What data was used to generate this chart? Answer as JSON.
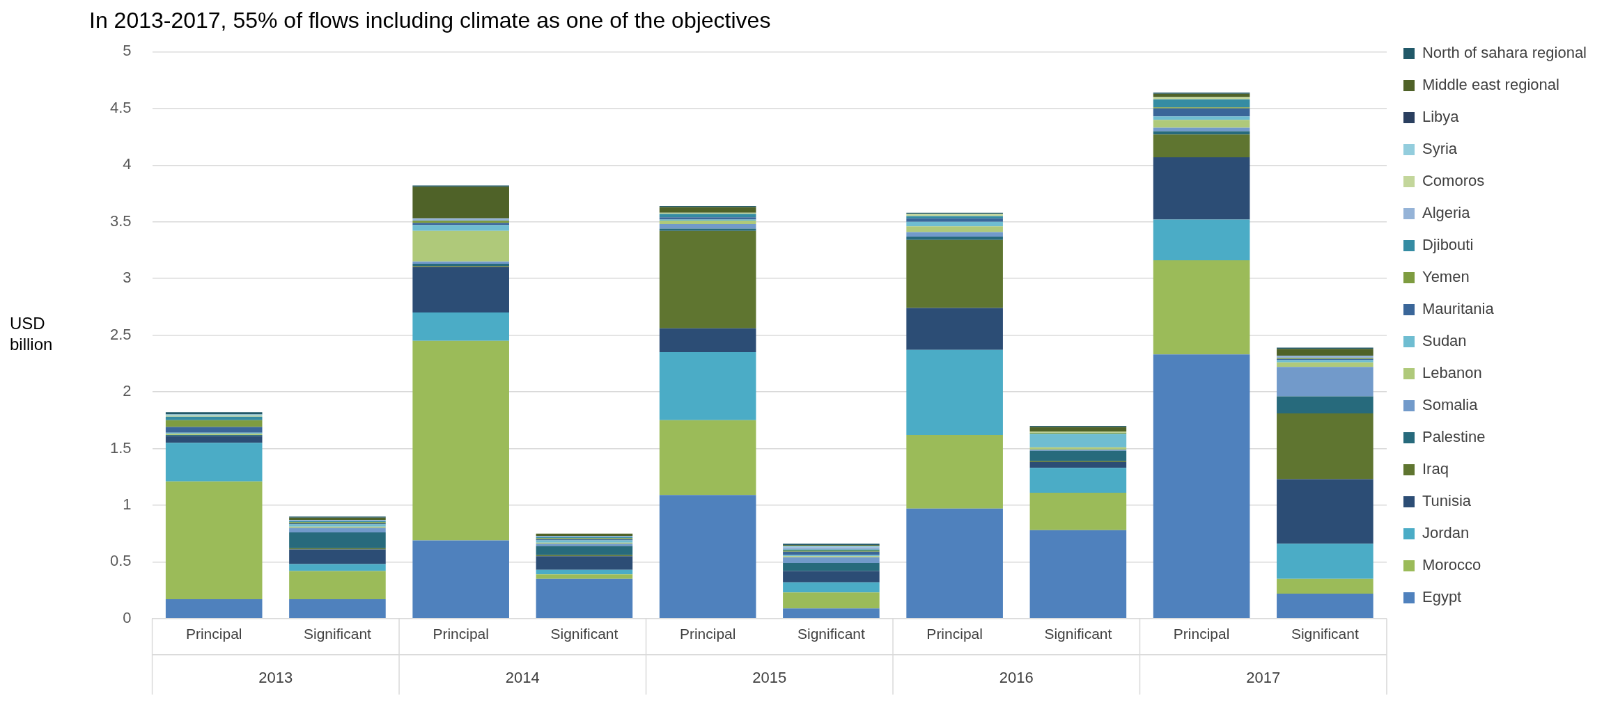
{
  "chart_data": {
    "type": "bar",
    "title": "In 2013-2017, 55% of flows including climate as one of the objectives",
    "ylabel": "USD billion",
    "stacked": true,
    "legend": "right",
    "grid": "y",
    "categories": [
      "Principal",
      "Significant",
      "Principal",
      "Significant",
      "Principal",
      "Significant",
      "Principal",
      "Significant",
      "Principal",
      "Significant"
    ],
    "annotations": [
      "2013",
      "2014",
      "2015",
      "2016",
      "2017"
    ],
    "ylim": [
      0,
      5
    ],
    "yticks": [
      0,
      0.5,
      1,
      1.5,
      2,
      2.5,
      3,
      3.5,
      4,
      4.5,
      5
    ],
    "series": [
      {
        "name": "Egypt",
        "color": "#4f81bd",
        "values": [
          0.17,
          0.17,
          0.69,
          0.35,
          1.09,
          0.09,
          0.97,
          0.78,
          2.33,
          0.22
        ]
      },
      {
        "name": "Morocco",
        "color": "#9bbb59",
        "values": [
          1.04,
          0.25,
          1.76,
          0.04,
          0.66,
          0.14,
          0.65,
          0.33,
          0.83,
          0.13
        ]
      },
      {
        "name": "Jordan",
        "color": "#4bacc6",
        "values": [
          0.34,
          0.06,
          0.25,
          0.04,
          0.6,
          0.09,
          0.75,
          0.22,
          0.36,
          0.31
        ]
      },
      {
        "name": "Tunisia",
        "color": "#2c4d75",
        "values": [
          0.06,
          0.13,
          0.4,
          0.12,
          0.21,
          0.1,
          0.37,
          0.05,
          0.55,
          0.57
        ]
      },
      {
        "name": "Iraq",
        "color": "#5f7530",
        "values": [
          0,
          0.01,
          0.01,
          0.01,
          0.86,
          0,
          0.6,
          0.01,
          0.2,
          0.58
        ]
      },
      {
        "name": "Palestine",
        "color": "#276a7c",
        "values": [
          0.01,
          0.14,
          0.02,
          0.08,
          0.02,
          0.07,
          0.03,
          0.09,
          0.03,
          0.15
        ]
      },
      {
        "name": "Somalia",
        "color": "#729aca",
        "values": [
          0,
          0.04,
          0.02,
          0.02,
          0.04,
          0.05,
          0.04,
          0.01,
          0.03,
          0.26
        ]
      },
      {
        "name": "Lebanon",
        "color": "#afc97a",
        "values": [
          0.01,
          0.01,
          0.27,
          0.01,
          0.03,
          0.01,
          0.05,
          0.02,
          0.07,
          0.04
        ]
      },
      {
        "name": "Sudan",
        "color": "#6fbdd1",
        "values": [
          0.01,
          0.02,
          0.05,
          0.02,
          0.01,
          0.01,
          0.04,
          0.12,
          0.03,
          0.02
        ]
      },
      {
        "name": "Mauritania",
        "color": "#3a6699",
        "values": [
          0.05,
          0.01,
          0.02,
          0.01,
          0.02,
          0.03,
          0.03,
          0,
          0.07,
          0.01
        ]
      },
      {
        "name": "Yemen",
        "color": "#7e9c40",
        "values": [
          0.06,
          0.01,
          0.02,
          0.01,
          0,
          0.01,
          0,
          0.01,
          0.01,
          0.01
        ]
      },
      {
        "name": "Djibouti",
        "color": "#358ca3",
        "values": [
          0.03,
          0.01,
          0,
          0.01,
          0.03,
          0.01,
          0.02,
          0,
          0.07,
          0
        ]
      },
      {
        "name": "Algeria",
        "color": "#95b3d7",
        "values": [
          0,
          0.01,
          0.02,
          0.01,
          0,
          0.02,
          0,
          0,
          0,
          0.02
        ]
      },
      {
        "name": "Comoros",
        "color": "#c3d69b",
        "values": [
          0.01,
          0,
          0,
          0,
          0.01,
          0,
          0.02,
          0.01,
          0.02,
          0
        ]
      },
      {
        "name": "Syria",
        "color": "#93cddd",
        "values": [
          0.01,
          0,
          0,
          0,
          0,
          0.01,
          0,
          0,
          0,
          0
        ]
      },
      {
        "name": "Libya",
        "color": "#2a3f5f",
        "values": [
          0,
          0,
          0,
          0,
          0,
          0,
          0,
          0,
          0,
          0
        ]
      },
      {
        "name": "Middle east regional",
        "color": "#4f6228",
        "values": [
          0,
          0.02,
          0.28,
          0.02,
          0.05,
          0.01,
          0,
          0.04,
          0.03,
          0.06
        ]
      },
      {
        "name": "North of sahara regional",
        "color": "#215868",
        "values": [
          0.02,
          0.01,
          0.01,
          0,
          0.01,
          0.01,
          0.01,
          0.01,
          0.01,
          0.01
        ]
      }
    ]
  }
}
